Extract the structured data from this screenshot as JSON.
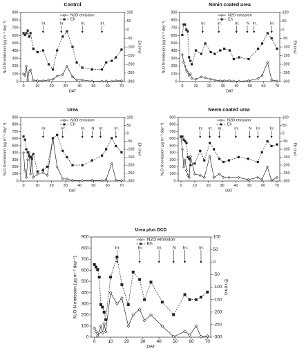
{
  "chart_data": [
    {
      "type": "line",
      "title": "Control",
      "x_label": "DAT",
      "y_label": "N₂O-N emission (µg m⁻² day⁻¹)",
      "y2_label": "Eh (mv)",
      "x": [
        0,
        1,
        2,
        3,
        4,
        5,
        7,
        10,
        14,
        18,
        21,
        24,
        28,
        31,
        35,
        38,
        42,
        49,
        56,
        59,
        63,
        66,
        70
      ],
      "series": [
        {
          "name": "N2O emission",
          "color": "#222",
          "values": [
            100,
            80,
            200,
            20,
            130,
            150,
            20,
            10,
            10,
            20,
            30,
            70,
            90,
            200,
            60,
            20,
            20,
            5,
            5,
            5,
            5,
            10,
            10
          ]
        },
        {
          "name": "Eh",
          "color": "#222",
          "axis": "y2",
          "values": [
            -20,
            -30,
            -20,
            -5,
            -40,
            -20,
            -110,
            -130,
            -120,
            -200,
            -230,
            -120,
            -40,
            -10,
            -100,
            -190,
            -220,
            -230,
            -230,
            -190,
            -180,
            -160,
            -115
          ]
        }
      ],
      "xlim": [
        -2,
        72
      ],
      "xticks": [
        0,
        10,
        20,
        30,
        40,
        50,
        60,
        70
      ],
      "ylim": [
        0,
        900
      ],
      "yticks": [
        0,
        100,
        200,
        300,
        400,
        500,
        600,
        700,
        800,
        900
      ],
      "y2lim": [
        -300,
        100
      ],
      "y2ticks": [
        -300,
        -250,
        -200,
        -150,
        -100,
        -50,
        0,
        50,
        100
      ],
      "annotations": [
        {
          "text": "Irr.",
          "x": 14
        },
        {
          "text": "Irr.",
          "x": 27
        },
        {
          "text": "Irr.",
          "x": 42
        },
        {
          "text": "Irr.",
          "x": 56
        }
      ]
    },
    {
      "type": "line",
      "title": "Nimin coated urea",
      "x_label": "DAT",
      "y_label": "N₂O-N emission (µg m⁻² day⁻¹)",
      "y2_label": "Eh (mv)",
      "x": [
        0,
        1,
        2,
        3,
        4,
        5,
        6,
        7,
        10,
        14,
        17,
        21,
        24,
        28,
        31,
        35,
        38,
        42,
        49,
        56,
        59,
        63,
        66,
        70
      ],
      "series": [
        {
          "name": "N2O emission",
          "color": "#222",
          "values": [
            350,
            250,
            200,
            150,
            120,
            80,
            100,
            40,
            30,
            60,
            50,
            30,
            20,
            10,
            10,
            10,
            5,
            5,
            10,
            40,
            80,
            250,
            20,
            5
          ]
        },
        {
          "name": "Eh",
          "color": "#222",
          "axis": "y2",
          "values": [
            -30,
            30,
            30,
            0,
            -10,
            -160,
            -180,
            -200,
            -120,
            -140,
            -80,
            -130,
            -140,
            -120,
            -110,
            -120,
            -170,
            -160,
            -170,
            -110,
            -80,
            -20,
            -50,
            -110
          ]
        }
      ],
      "xlim": [
        -2,
        72
      ],
      "xticks": [
        0,
        10,
        20,
        30,
        40,
        50,
        60,
        70
      ],
      "ylim": [
        0,
        900
      ],
      "yticks": [
        0,
        100,
        200,
        300,
        400,
        500,
        600,
        700,
        800,
        900
      ],
      "y2lim": [
        -300,
        100
      ],
      "y2ticks": [
        -300,
        -250,
        -200,
        -150,
        -100,
        -50,
        0,
        50,
        100
      ],
      "annotations": [
        {
          "text": "Irr.",
          "x": 15
        },
        {
          "text": "Irr.",
          "x": 27
        },
        {
          "text": "Irr.",
          "x": 40
        },
        {
          "text": "N",
          "x": 48
        },
        {
          "text": "Irr.",
          "x": 53
        },
        {
          "text": "Irr.",
          "x": 66
        }
      ]
    },
    {
      "type": "line",
      "title": "Urea",
      "x_label": "DAT",
      "y_label": "N₂O-N emission (µg m⁻² day⁻¹)",
      "y2_label": "Eh (mv)",
      "x": [
        0,
        1,
        2,
        3,
        4,
        5,
        6,
        7,
        10,
        14,
        17,
        21,
        24,
        28,
        31,
        35,
        42,
        49,
        56,
        59,
        63,
        66,
        70
      ],
      "series": [
        {
          "name": "N2O emission",
          "color": "#222",
          "values": [
            400,
            150,
            50,
            300,
            400,
            100,
            350,
            50,
            100,
            120,
            80,
            600,
            200,
            30,
            30,
            10,
            5,
            10,
            5,
            20,
            250,
            10,
            5
          ]
        },
        {
          "name": "Eh",
          "color": "#222",
          "axis": "y2",
          "values": [
            -20,
            -40,
            -100,
            -120,
            -140,
            -150,
            -160,
            -130,
            -240,
            -230,
            -210,
            -30,
            -10,
            -110,
            -150,
            -200,
            -200,
            -170,
            -140,
            -100,
            -30,
            -80,
            -120
          ]
        }
      ],
      "xlim": [
        -2,
        72
      ],
      "xticks": [
        0,
        10,
        20,
        30,
        40,
        50,
        60,
        70
      ],
      "ylim": [
        0,
        900
      ],
      "yticks": [
        0,
        100,
        200,
        300,
        400,
        500,
        600,
        700,
        800,
        900
      ],
      "y2lim": [
        -300,
        100
      ],
      "y2ticks": [
        -300,
        -250,
        -200,
        -150,
        -100,
        -50,
        0,
        50,
        100
      ],
      "annotations": [
        {
          "text": "Irr.",
          "x": 14
        },
        {
          "text": "Irr.",
          "x": 28
        },
        {
          "text": "Irr.",
          "x": 42
        },
        {
          "text": "N",
          "x": 49
        },
        {
          "text": "Irr.",
          "x": 55
        },
        {
          "text": "Irr.",
          "x": 66
        }
      ]
    },
    {
      "type": "line",
      "title": "Neem coated urea",
      "x_label": "DAT",
      "y_label": "N₂O-N emission (µg m⁻² day⁻¹)",
      "y2_label": "Eh (mv)",
      "x": [
        0,
        1,
        2,
        3,
        4,
        5,
        6,
        7,
        10,
        14,
        17,
        21,
        24,
        28,
        31,
        35,
        42,
        49,
        56,
        59,
        63,
        66,
        70
      ],
      "series": [
        {
          "name": "N2O emission",
          "color": "#222",
          "values": [
            620,
            450,
            200,
            300,
            150,
            80,
            50,
            350,
            100,
            80,
            50,
            350,
            50,
            100,
            50,
            50,
            50,
            20,
            50,
            20,
            200,
            10,
            50
          ]
        },
        {
          "name": "Eh",
          "color": "#222",
          "axis": "y2",
          "values": [
            -20,
            -20,
            -40,
            -50,
            -60,
            -150,
            -160,
            -200,
            -190,
            -110,
            -170,
            -60,
            -100,
            -160,
            -180,
            -170,
            -150,
            -160,
            -180,
            -120,
            -50,
            -80,
            -70
          ]
        }
      ],
      "xlim": [
        -2,
        72
      ],
      "xticks": [
        0,
        10,
        20,
        30,
        40,
        50,
        60,
        70
      ],
      "ylim": [
        0,
        900
      ],
      "yticks": [
        0,
        100,
        200,
        300,
        400,
        500,
        600,
        700,
        800,
        900
      ],
      "y2lim": [
        -300,
        100
      ],
      "y2ticks": [
        -300,
        -250,
        -200,
        -150,
        -100,
        -50,
        0,
        50,
        100
      ],
      "annotations": [
        {
          "text": "Irr.",
          "x": 14
        },
        {
          "text": "Irr.",
          "x": 21
        },
        {
          "text": "Irr.",
          "x": 28
        },
        {
          "text": "Irr.",
          "x": 40
        },
        {
          "text": "N",
          "x": 50
        },
        {
          "text": "Irr.",
          "x": 56
        },
        {
          "text": "Irr.",
          "x": 66
        }
      ]
    },
    {
      "type": "line",
      "title": "Urea plus DCD",
      "x_label": "DAT",
      "y_label": "N₂O-N emission (µg m⁻² day⁻¹)",
      "y2_label": "Eh (mv)",
      "x": [
        0,
        1,
        2,
        3,
        4,
        5,
        6,
        7,
        10,
        14,
        17,
        21,
        24,
        28,
        31,
        35,
        42,
        49,
        56,
        59,
        63,
        66,
        70
      ],
      "series": [
        {
          "name": "N2O emission",
          "color": "#222",
          "values": [
            80,
            50,
            10,
            40,
            100,
            40,
            120,
            50,
            400,
            300,
            350,
            100,
            200,
            250,
            150,
            200,
            100,
            5,
            50,
            20,
            100,
            5,
            10
          ]
        },
        {
          "name": "Eh",
          "color": "#222",
          "axis": "y2",
          "values": [
            -10,
            -20,
            -30,
            -60,
            -170,
            -180,
            -200,
            -230,
            -60,
            20,
            -90,
            -170,
            -40,
            -70,
            -150,
            -80,
            -160,
            -210,
            -130,
            -150,
            -150,
            -140,
            -120
          ]
        }
      ],
      "xlim": [
        -2,
        72
      ],
      "xticks": [
        0,
        10,
        20,
        30,
        40,
        50,
        60,
        70
      ],
      "ylim": [
        0,
        900
      ],
      "yticks": [
        0,
        100,
        200,
        300,
        400,
        500,
        600,
        700,
        800,
        900
      ],
      "y2lim": [
        -300,
        100
      ],
      "y2ticks": [
        -300,
        -250,
        -200,
        -150,
        -100,
        -50,
        0,
        50,
        100
      ],
      "annotations": [
        {
          "text": "Irr.",
          "x": 14
        },
        {
          "text": "Irr.",
          "x": 28
        },
        {
          "text": "Irr.",
          "x": 40
        },
        {
          "text": "N",
          "x": 49
        },
        {
          "text": "Irr.",
          "x": 56
        },
        {
          "text": "Irr.",
          "x": 66
        }
      ]
    }
  ]
}
